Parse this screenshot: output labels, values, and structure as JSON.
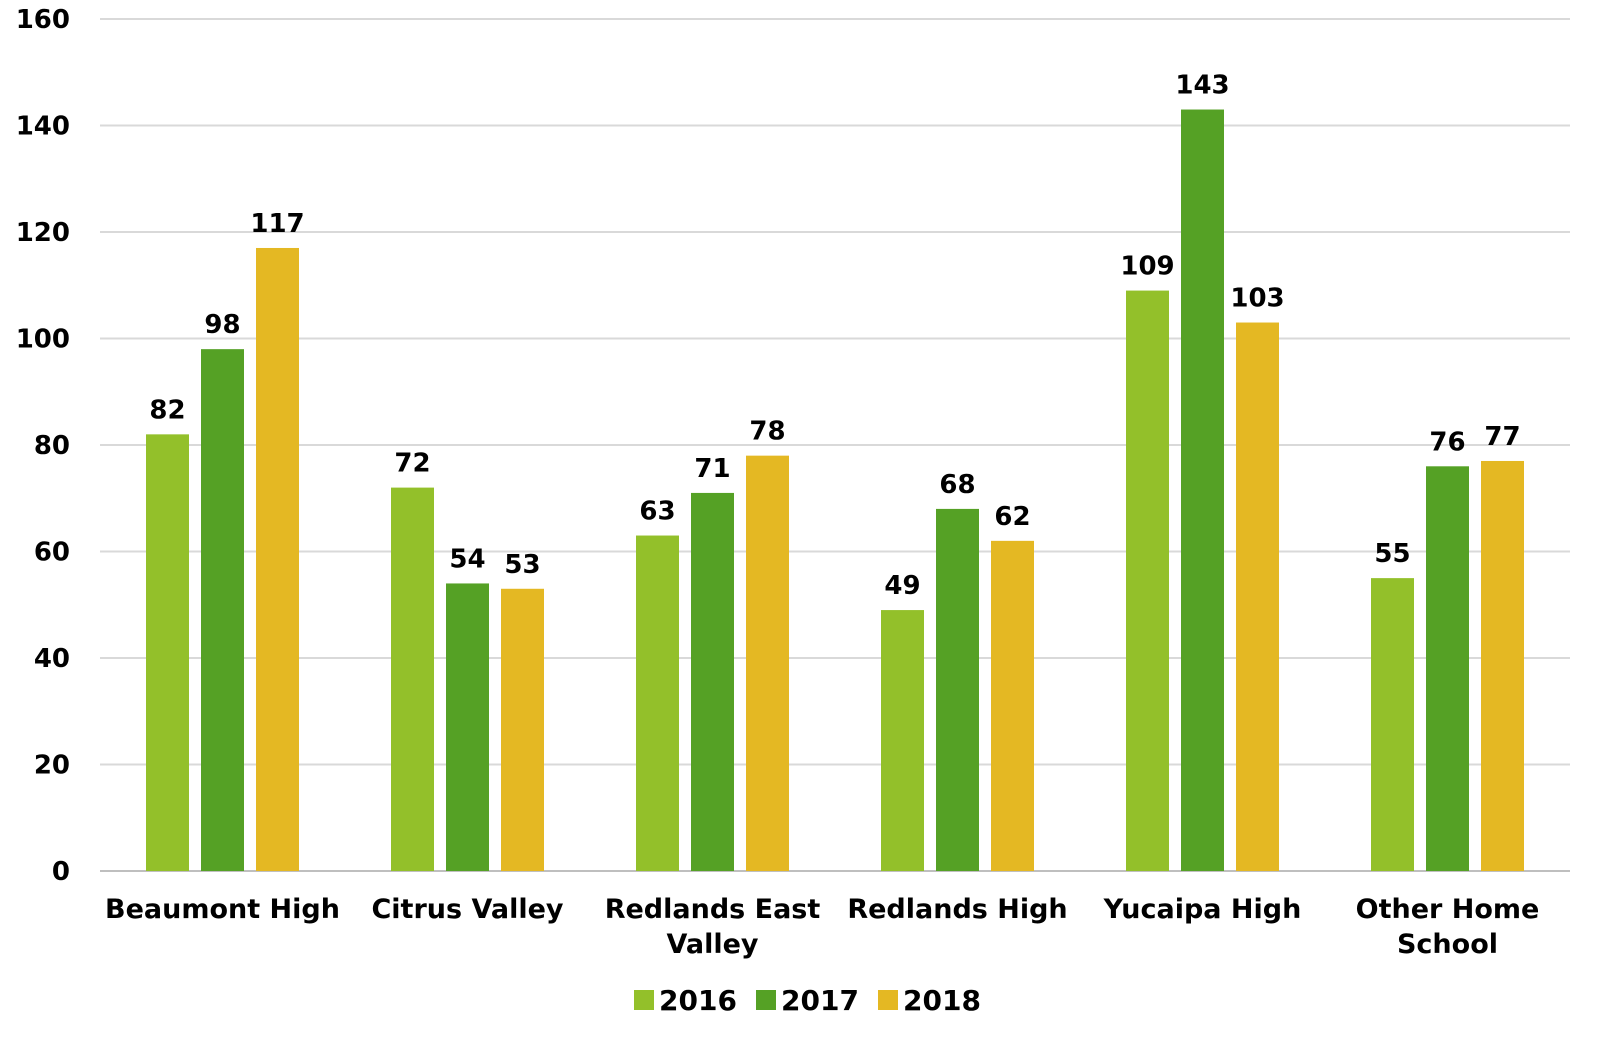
{
  "chart_data": {
    "type": "bar",
    "categories": [
      [
        "Beaumont High"
      ],
      [
        "Citrus Valley"
      ],
      [
        "Redlands East",
        "Valley"
      ],
      [
        "Redlands High"
      ],
      [
        "Yucaipa High"
      ],
      [
        "Other Home",
        "School"
      ]
    ],
    "series": [
      {
        "name": "2016",
        "color": "#93c02a",
        "values": [
          82,
          72,
          63,
          49,
          109,
          55
        ]
      },
      {
        "name": "2017",
        "color": "#55a125",
        "values": [
          98,
          54,
          71,
          68,
          143,
          76
        ]
      },
      {
        "name": "2018",
        "color": "#e4b823",
        "values": [
          117,
          53,
          78,
          62,
          103,
          77
        ]
      }
    ],
    "ylim": [
      0,
      160
    ],
    "yticks": [
      0,
      20,
      40,
      60,
      80,
      100,
      120,
      140,
      160
    ],
    "grid": true,
    "legend": "bottom-center",
    "title": "",
    "xlabel": "",
    "ylabel": ""
  }
}
